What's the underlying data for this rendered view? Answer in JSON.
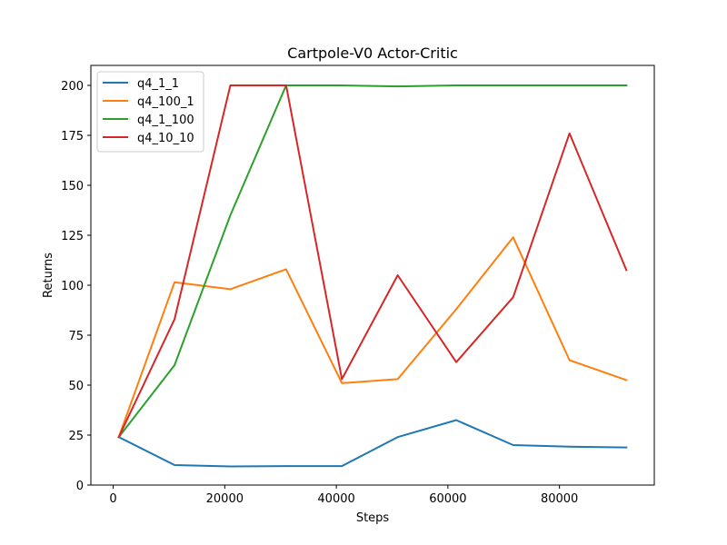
{
  "chart_data": {
    "type": "line",
    "title": "Cartpole-V0 Actor-Critic",
    "xlabel": "Steps",
    "ylabel": "Returns",
    "xlim": [
      -4000,
      97000
    ],
    "ylim": [
      0,
      210
    ],
    "xticks": [
      0,
      20000,
      40000,
      60000,
      80000
    ],
    "yticks": [
      0,
      25,
      50,
      75,
      100,
      125,
      150,
      175,
      200
    ],
    "grid": false,
    "legend_position": "top-left",
    "x": [
      1000,
      11000,
      21000,
      31000,
      41000,
      51000,
      61500,
      71700,
      81800,
      92000
    ],
    "series": [
      {
        "name": "q4_1_1",
        "color": "#1f77b4",
        "values": [
          24,
          10,
          9.3,
          9.5,
          9.5,
          24,
          32.5,
          20,
          19.2,
          18.8
        ]
      },
      {
        "name": "q4_100_1",
        "color": "#ff7f0e",
        "values": [
          24,
          101.5,
          98,
          108,
          51,
          53,
          88,
          124,
          62.5,
          52.5
        ]
      },
      {
        "name": "q4_1_100",
        "color": "#2ca02c",
        "values": [
          24,
          60,
          135,
          200,
          200,
          199.5,
          200,
          200,
          200,
          200
        ]
      },
      {
        "name": "q4_10_10",
        "color": "#d62728",
        "values": [
          24,
          83,
          200,
          200,
          53,
          105,
          61.5,
          94,
          176,
          107.5
        ]
      }
    ]
  }
}
